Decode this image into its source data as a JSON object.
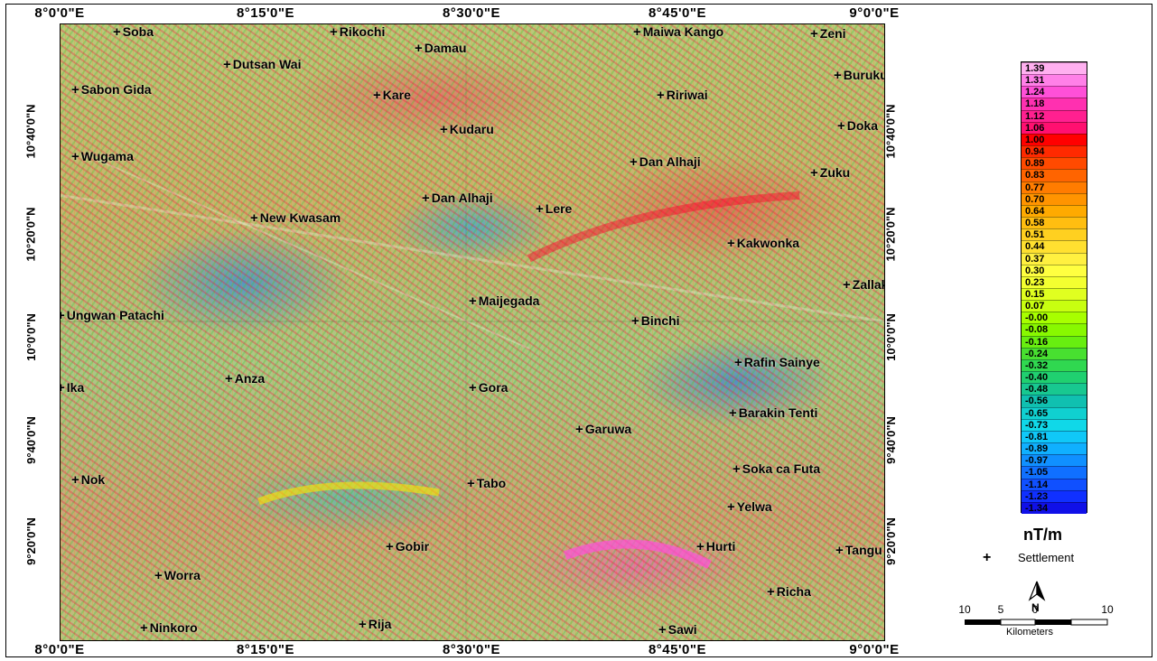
{
  "map": {
    "longitude_ticks": [
      "8°0'0\"E",
      "8°15'0\"E",
      "8°30'0\"E",
      "8°45'0\"E",
      "9°0'0\"E"
    ],
    "latitude_ticks": [
      "10°40'0\"N",
      "10°20'0\"N",
      "10°0'0\"N",
      "9°40'0\"N",
      "9°20'0\"N"
    ],
    "settlements": [
      {
        "name": "Soba"
      },
      {
        "name": "Rikochi"
      },
      {
        "name": "Maiwa Kango"
      },
      {
        "name": "Zeni"
      },
      {
        "name": "Damau"
      },
      {
        "name": "Dutsan Wai"
      },
      {
        "name": "Buruku"
      },
      {
        "name": "Sabon Gida"
      },
      {
        "name": "Kare"
      },
      {
        "name": "Ririwai"
      },
      {
        "name": "Kudaru"
      },
      {
        "name": "Doka"
      },
      {
        "name": "Wugama"
      },
      {
        "name": "Dan Alhaji"
      },
      {
        "name": "Zuku"
      },
      {
        "name": "Dan Alhaji"
      },
      {
        "name": "Lere"
      },
      {
        "name": "New Kwasam"
      },
      {
        "name": "Kakwonka"
      },
      {
        "name": "Zallaki"
      },
      {
        "name": "Maijegada"
      },
      {
        "name": "Ungwan Patachi"
      },
      {
        "name": "Binchi"
      },
      {
        "name": "Rafin Sainye"
      },
      {
        "name": "Anza"
      },
      {
        "name": "Ika"
      },
      {
        "name": "Gora"
      },
      {
        "name": "Barakin Tenti"
      },
      {
        "name": "Garuwa"
      },
      {
        "name": "Soka ca Futa"
      },
      {
        "name": "Nok"
      },
      {
        "name": "Tabo"
      },
      {
        "name": "Yelwa"
      },
      {
        "name": "Gobir"
      },
      {
        "name": "Hurti"
      },
      {
        "name": "Tangu"
      },
      {
        "name": "Worra"
      },
      {
        "name": "Richa"
      },
      {
        "name": "Ninkoro"
      },
      {
        "name": "Rija"
      },
      {
        "name": "Sawi"
      }
    ]
  },
  "legend": {
    "unit": "nT/m",
    "values": [
      "1.39",
      "1.31",
      "1.24",
      "1.18",
      "1.12",
      "1.06",
      "1.00",
      "0.94",
      "0.89",
      "0.83",
      "0.77",
      "0.70",
      "0.64",
      "0.58",
      "0.51",
      "0.44",
      "0.37",
      "0.30",
      "0.23",
      "0.15",
      "0.07",
      "-0.00",
      "-0.08",
      "-0.16",
      "-0.24",
      "-0.32",
      "-0.40",
      "-0.48",
      "-0.56",
      "-0.65",
      "-0.73",
      "-0.81",
      "-0.89",
      "-0.97",
      "-1.05",
      "-1.14",
      "-1.23",
      "-1.34"
    ],
    "colors": [
      "#ffb0f0",
      "#ff80e8",
      "#ff50d8",
      "#ff30b0",
      "#ff2090",
      "#ff1070",
      "#ff0000",
      "#ff2a00",
      "#ff4a00",
      "#ff6400",
      "#ff7c00",
      "#ff9400",
      "#ffaa00",
      "#ffbe10",
      "#ffd020",
      "#ffe030",
      "#fff040",
      "#ffff40",
      "#f4ff30",
      "#e0ff20",
      "#c8ff10",
      "#a8ff00",
      "#88f800",
      "#68ee10",
      "#48e030",
      "#30d850",
      "#20d070",
      "#18c890",
      "#10c0b0",
      "#10d0d0",
      "#10d8e8",
      "#10c8f8",
      "#10b0ff",
      "#1090ff",
      "#1070ff",
      "#1050ff",
      "#1030ff",
      "#1010e8"
    ],
    "settlement_label": "Settlement",
    "settlement_marker": "+"
  },
  "scale": {
    "labels": [
      "10",
      "5",
      "0",
      "10"
    ],
    "unit": "Kilometers",
    "north_label": "N"
  }
}
